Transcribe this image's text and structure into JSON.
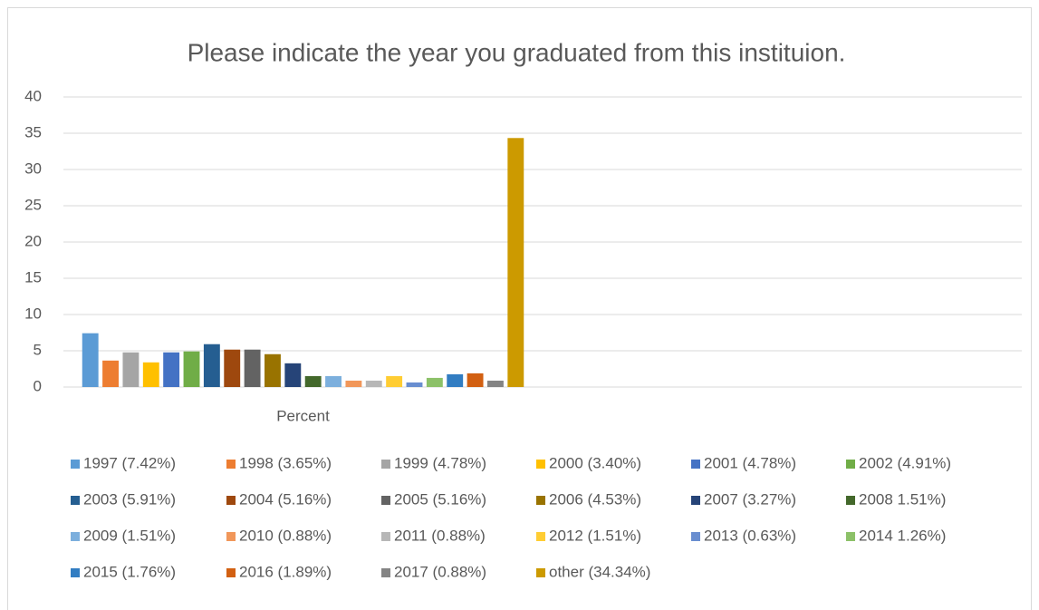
{
  "chart_data": {
    "type": "bar",
    "title": "Please indicate the year you graduated from this instituion.",
    "categories": [
      "Percent",
      null
    ],
    "series": [
      {
        "name": "1997 (7.42%)",
        "color": "#5b9bd5",
        "values": [
          7.42,
          null
        ]
      },
      {
        "name": "1998 (3.65%)",
        "color": "#ed7d31",
        "values": [
          3.65,
          null
        ]
      },
      {
        "name": "1999 (4.78%)",
        "color": "#a5a5a5",
        "values": [
          4.78,
          null
        ]
      },
      {
        "name": "2000 (3.40%)",
        "color": "#ffc000",
        "values": [
          3.4,
          null
        ]
      },
      {
        "name": "2001 (4.78%)",
        "color": "#4472c4",
        "values": [
          4.78,
          null
        ]
      },
      {
        "name": "2002 (4.91%)",
        "color": "#70ad47",
        "values": [
          4.91,
          null
        ]
      },
      {
        "name": "2003 (5.91%)",
        "color": "#255e91",
        "values": [
          5.91,
          null
        ]
      },
      {
        "name": "2004 (5.16%)",
        "color": "#9e480e",
        "values": [
          5.16,
          null
        ]
      },
      {
        "name": "2005 (5.16%)",
        "color": "#636363",
        "values": [
          5.16,
          null
        ]
      },
      {
        "name": "2006 (4.53%)",
        "color": "#997300",
        "values": [
          4.53,
          null
        ]
      },
      {
        "name": "2007 (3.27%)",
        "color": "#264478",
        "values": [
          3.27,
          null
        ]
      },
      {
        "name": "2008 1.51%)",
        "color": "#43682b",
        "values": [
          1.51,
          null
        ]
      },
      {
        "name": "2009 (1.51%)",
        "color": "#7cafdd",
        "values": [
          1.51,
          null
        ]
      },
      {
        "name": "2010 (0.88%)",
        "color": "#f1975a",
        "values": [
          0.88,
          null
        ]
      },
      {
        "name": "2011 (0.88%)",
        "color": "#b7b7b7",
        "values": [
          0.88,
          null
        ]
      },
      {
        "name": "2012 (1.51%)",
        "color": "#ffcd33",
        "values": [
          1.51,
          null
        ]
      },
      {
        "name": "2013 (0.63%)",
        "color": "#698ed0",
        "values": [
          0.63,
          null
        ]
      },
      {
        "name": "2014 1.26%)",
        "color": "#8cc168",
        "values": [
          1.26,
          null
        ]
      },
      {
        "name": "2015 (1.76%)",
        "color": "#327dc2",
        "values": [
          1.76,
          null
        ]
      },
      {
        "name": "2016 (1.89%)",
        "color": "#d26012",
        "values": [
          1.89,
          null
        ]
      },
      {
        "name": "2017 (0.88%)",
        "color": "#848484",
        "values": [
          0.88,
          null
        ]
      },
      {
        "name": "other (34.34%)",
        "color": "#cc9a00",
        "values": [
          34.34,
          null
        ]
      }
    ],
    "ylim": [
      0,
      40
    ],
    "yticks": [
      0,
      5,
      10,
      15,
      20,
      25,
      30,
      35,
      40
    ],
    "grid": true
  }
}
